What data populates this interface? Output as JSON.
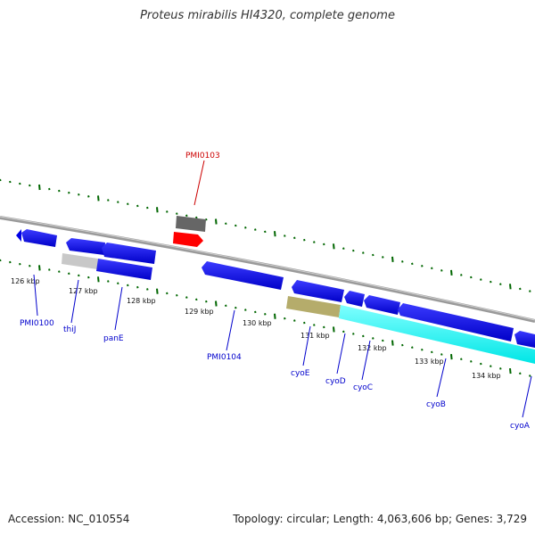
{
  "title": "Proteus mirabilis HI4320, complete genome",
  "footer": {
    "accession": "Accession: NC_010554",
    "summary": "Topology: circular; Length: 4,063,606 bp; Genes: 3,729"
  },
  "scale_labels": [
    "126 kbp",
    "127 kbp",
    "128 kbp",
    "129 kbp",
    "130 kbp",
    "131 kbp",
    "132 kbp",
    "133 kbp",
    "134 kbp"
  ],
  "gene_labels": {
    "PMI0103": "PMI0103",
    "PMI0100": "PMI0100",
    "thiJ": "thiJ",
    "panE": "panE",
    "PMI0104": "PMI0104",
    "cyoE": "cyoE",
    "cyoD": "cyoD",
    "cyoC": "cyoC",
    "cyoB": "cyoB",
    "cyoA": "cyoA"
  },
  "colors": {
    "forward_cds": "#0000e6",
    "reverse_highlight": "#ff0000",
    "gray_feature": "#666666",
    "light_gray_feature": "#c8c8c8",
    "olive_feature": "#b5ac6b",
    "cyan_feature": "#00ffff",
    "backbone": "#888888",
    "tick_green": "#006600",
    "label_blue": "#0000cc",
    "label_red": "#cc0000"
  }
}
